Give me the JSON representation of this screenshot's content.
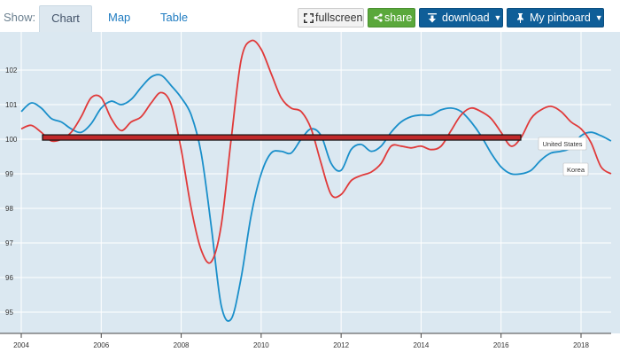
{
  "toolbar": {
    "show_label": "Show:",
    "tabs": [
      {
        "label": "Chart",
        "active": true
      },
      {
        "label": "Map",
        "active": false
      },
      {
        "label": "Table",
        "active": false
      }
    ],
    "fullscreen_label": "fullscreen",
    "share_label": "share",
    "download_label": "download",
    "pinboard_label": "My pinboard",
    "colors": {
      "share": "#5aa83b",
      "download": "#0f5e98",
      "pinboard": "#0f5e98"
    }
  },
  "chart_data": {
    "type": "line",
    "x_ticks": [
      "2004",
      "2006",
      "2008",
      "2010",
      "2012",
      "2014",
      "2016",
      "2018"
    ],
    "y_ticks": [
      "95",
      "96",
      "97",
      "98",
      "99",
      "100",
      "101",
      "102"
    ],
    "xlim": [
      2004,
      2018.8
    ],
    "ylim": [
      94.4,
      103.2
    ],
    "grid": true,
    "baseline": 100.05,
    "series": [
      {
        "name": "United States",
        "color": "#1a8fca",
        "points": [
          [
            2004,
            100.8
          ],
          [
            2004.25,
            101.05
          ],
          [
            2004.5,
            100.9
          ],
          [
            2004.75,
            100.6
          ],
          [
            2005,
            100.5
          ],
          [
            2005.25,
            100.3
          ],
          [
            2005.5,
            100.2
          ],
          [
            2005.75,
            100.45
          ],
          [
            2006,
            100.9
          ],
          [
            2006.25,
            101.1
          ],
          [
            2006.5,
            101.0
          ],
          [
            2006.75,
            101.15
          ],
          [
            2007,
            101.5
          ],
          [
            2007.25,
            101.8
          ],
          [
            2007.5,
            101.85
          ],
          [
            2007.75,
            101.55
          ],
          [
            2008,
            101.2
          ],
          [
            2008.25,
            100.7
          ],
          [
            2008.5,
            99.6
          ],
          [
            2008.75,
            97.5
          ],
          [
            2009,
            95.2
          ],
          [
            2009.25,
            94.8
          ],
          [
            2009.5,
            96.0
          ],
          [
            2009.75,
            97.8
          ],
          [
            2010,
            99.0
          ],
          [
            2010.25,
            99.6
          ],
          [
            2010.5,
            99.65
          ],
          [
            2010.75,
            99.6
          ],
          [
            2011,
            100.0
          ],
          [
            2011.25,
            100.3
          ],
          [
            2011.5,
            100.1
          ],
          [
            2011.75,
            99.3
          ],
          [
            2012,
            99.1
          ],
          [
            2012.25,
            99.7
          ],
          [
            2012.5,
            99.85
          ],
          [
            2012.75,
            99.65
          ],
          [
            2013,
            99.8
          ],
          [
            2013.25,
            100.2
          ],
          [
            2013.5,
            100.5
          ],
          [
            2013.75,
            100.65
          ],
          [
            2014,
            100.7
          ],
          [
            2014.25,
            100.7
          ],
          [
            2014.5,
            100.85
          ],
          [
            2014.75,
            100.9
          ],
          [
            2015,
            100.8
          ],
          [
            2015.25,
            100.5
          ],
          [
            2015.5,
            100.1
          ],
          [
            2015.75,
            99.6
          ],
          [
            2016,
            99.2
          ],
          [
            2016.25,
            99.0
          ],
          [
            2016.5,
            99.0
          ],
          [
            2016.75,
            99.1
          ],
          [
            2017,
            99.4
          ],
          [
            2017.25,
            99.6
          ],
          [
            2017.5,
            99.65
          ],
          [
            2017.75,
            99.75
          ],
          [
            2018,
            100.1
          ],
          [
            2018.25,
            100.2
          ],
          [
            2018.5,
            100.1
          ],
          [
            2018.75,
            99.95
          ]
        ]
      },
      {
        "name": "Korea",
        "color": "#e03a3a",
        "points": [
          [
            2004,
            100.3
          ],
          [
            2004.25,
            100.4
          ],
          [
            2004.5,
            100.2
          ],
          [
            2004.75,
            99.95
          ],
          [
            2005,
            100.0
          ],
          [
            2005.25,
            100.2
          ],
          [
            2005.5,
            100.65
          ],
          [
            2005.75,
            101.2
          ],
          [
            2006,
            101.2
          ],
          [
            2006.25,
            100.6
          ],
          [
            2006.5,
            100.25
          ],
          [
            2006.75,
            100.5
          ],
          [
            2007,
            100.65
          ],
          [
            2007.25,
            101.05
          ],
          [
            2007.5,
            101.35
          ],
          [
            2007.75,
            101.0
          ],
          [
            2008,
            99.7
          ],
          [
            2008.25,
            98.0
          ],
          [
            2008.5,
            96.8
          ],
          [
            2008.75,
            96.45
          ],
          [
            2009,
            97.5
          ],
          [
            2009.25,
            100.0
          ],
          [
            2009.5,
            102.3
          ],
          [
            2009.75,
            102.85
          ],
          [
            2010,
            102.6
          ],
          [
            2010.25,
            101.9
          ],
          [
            2010.5,
            101.2
          ],
          [
            2010.75,
            100.9
          ],
          [
            2011,
            100.8
          ],
          [
            2011.25,
            100.3
          ],
          [
            2011.5,
            99.3
          ],
          [
            2011.75,
            98.4
          ],
          [
            2012,
            98.4
          ],
          [
            2012.25,
            98.8
          ],
          [
            2012.5,
            98.95
          ],
          [
            2012.75,
            99.05
          ],
          [
            2013,
            99.3
          ],
          [
            2013.25,
            99.8
          ],
          [
            2013.5,
            99.8
          ],
          [
            2013.75,
            99.75
          ],
          [
            2014,
            99.8
          ],
          [
            2014.25,
            99.7
          ],
          [
            2014.5,
            99.8
          ],
          [
            2014.75,
            100.25
          ],
          [
            2015,
            100.7
          ],
          [
            2015.25,
            100.9
          ],
          [
            2015.5,
            100.8
          ],
          [
            2015.75,
            100.6
          ],
          [
            2016,
            100.2
          ],
          [
            2016.25,
            99.8
          ],
          [
            2016.5,
            100.05
          ],
          [
            2016.75,
            100.6
          ],
          [
            2017,
            100.85
          ],
          [
            2017.25,
            100.95
          ],
          [
            2017.5,
            100.8
          ],
          [
            2017.75,
            100.5
          ],
          [
            2018,
            100.3
          ],
          [
            2018.25,
            99.9
          ],
          [
            2018.5,
            99.2
          ],
          [
            2018.75,
            99.0
          ]
        ]
      }
    ],
    "labels": [
      {
        "text": "United States",
        "series": "United States"
      },
      {
        "text": "Korea",
        "series": "Korea"
      }
    ]
  }
}
